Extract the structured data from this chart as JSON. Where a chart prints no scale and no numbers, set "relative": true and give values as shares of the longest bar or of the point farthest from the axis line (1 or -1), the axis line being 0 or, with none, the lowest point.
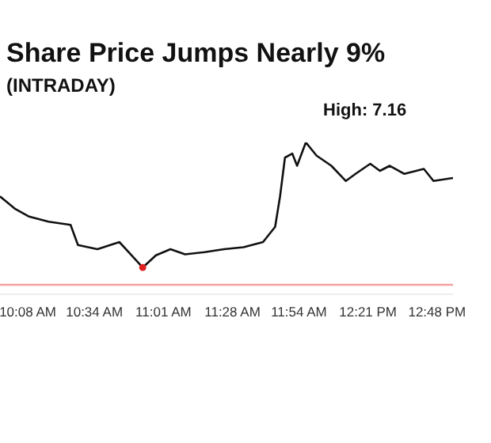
{
  "chart_data": {
    "type": "line",
    "title": "Share Price Jumps Nearly 9%",
    "subtitle": "(INTRADAY)",
    "annotations": [
      "High: 7.16"
    ],
    "relative": true,
    "x": [
      9.952,
      10.047,
      10.142,
      10.269,
      10.412,
      10.46,
      10.587,
      10.73,
      10.809,
      10.882,
      10.968,
      11.063,
      11.158,
      11.285,
      11.412,
      11.539,
      11.666,
      11.745,
      11.777,
      11.809,
      11.857,
      11.888,
      11.945,
      12.015,
      12.111,
      12.206,
      12.269,
      12.365,
      12.428,
      12.492,
      12.587,
      12.714,
      12.777,
      12.904
    ],
    "series": [
      {
        "color": "#111111",
        "marker": "none",
        "values": [
          0.621,
          0.536,
          0.479,
          0.443,
          0.421,
          0.279,
          0.25,
          0.3,
          0.207,
          0.121,
          0.207,
          0.25,
          0.214,
          0.229,
          0.25,
          0.264,
          0.3,
          0.407,
          0.621,
          0.893,
          0.921,
          0.836,
          1,
          0.907,
          0.836,
          0.729,
          0.779,
          0.85,
          0.8,
          0.836,
          0.779,
          0.814,
          0.729,
          0.75
        ]
      },
      {
        "type": "scatter",
        "marker": "circle",
        "color": "#e02020",
        "x": [
          10.882
        ],
        "values": [
          0.121
        ]
      }
    ],
    "xlim": [
      9.952,
      12.904
    ],
    "xticks": [
      {
        "value": 10.133,
        "label": "10:08 AM"
      },
      {
        "value": 10.567,
        "label": "10:34 AM"
      },
      {
        "value": 11.017,
        "label": "11:01 AM"
      },
      {
        "value": 11.467,
        "label": "11:28 AM"
      },
      {
        "value": 11.9,
        "label": "11:54 AM"
      },
      {
        "value": 12.35,
        "label": "12:21 PM"
      },
      {
        "value": 12.8,
        "label": "12:48 PM"
      }
    ],
    "ref_lines": [
      {
        "axis": "y",
        "value": 0,
        "color": "#f4a0a0"
      }
    ],
    "line_style": "solid",
    "tick_labels": "x"
  }
}
